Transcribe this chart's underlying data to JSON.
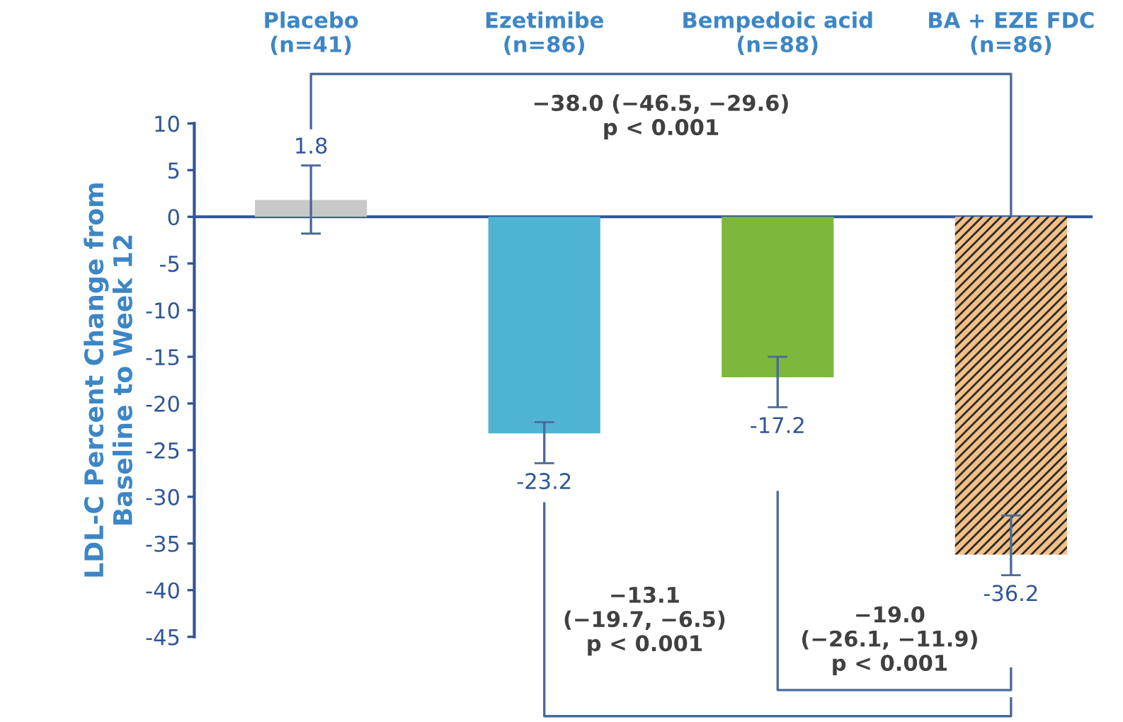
{
  "chart_data": {
    "type": "bar",
    "ylabel": "LDL-C Percent Change from\nBaseline to Week 12",
    "categories": [
      "Placebo\n(n=41)",
      "Ezetimibe\n(n=86)",
      "Bempedoic acid\n(n=88)",
      "BA + EZE FDC\n(n=86)"
    ],
    "values": [
      1.8,
      -23.2,
      -17.2,
      -36.2
    ],
    "colors": [
      "#c8c8c8",
      "#4fb3d4",
      "#7db83d",
      "#f2bf86"
    ],
    "errors": [
      [
        -1.8,
        5.5
      ],
      [
        -26.4,
        -22.0
      ],
      [
        -20.4,
        -15.0
      ],
      [
        -38.4,
        -32.0
      ]
    ],
    "data_labels": true,
    "ylim": [
      -45,
      10
    ],
    "yticks": [
      10,
      5,
      0,
      -5,
      -10,
      -15,
      -20,
      -25,
      -30,
      -35,
      -40,
      -45
    ],
    "grid": false,
    "ref_lines": [
      {
        "axis": "y",
        "value": 0,
        "color": "#2f5597"
      }
    ],
    "annotations": [
      "−38.0 (−46.5, −29.6)\np < 0.001",
      "−13.1\n(−19.7, −6.5)\np < 0.001",
      "−19.0\n(−26.1, −11.9)\np < 0.001"
    ]
  }
}
